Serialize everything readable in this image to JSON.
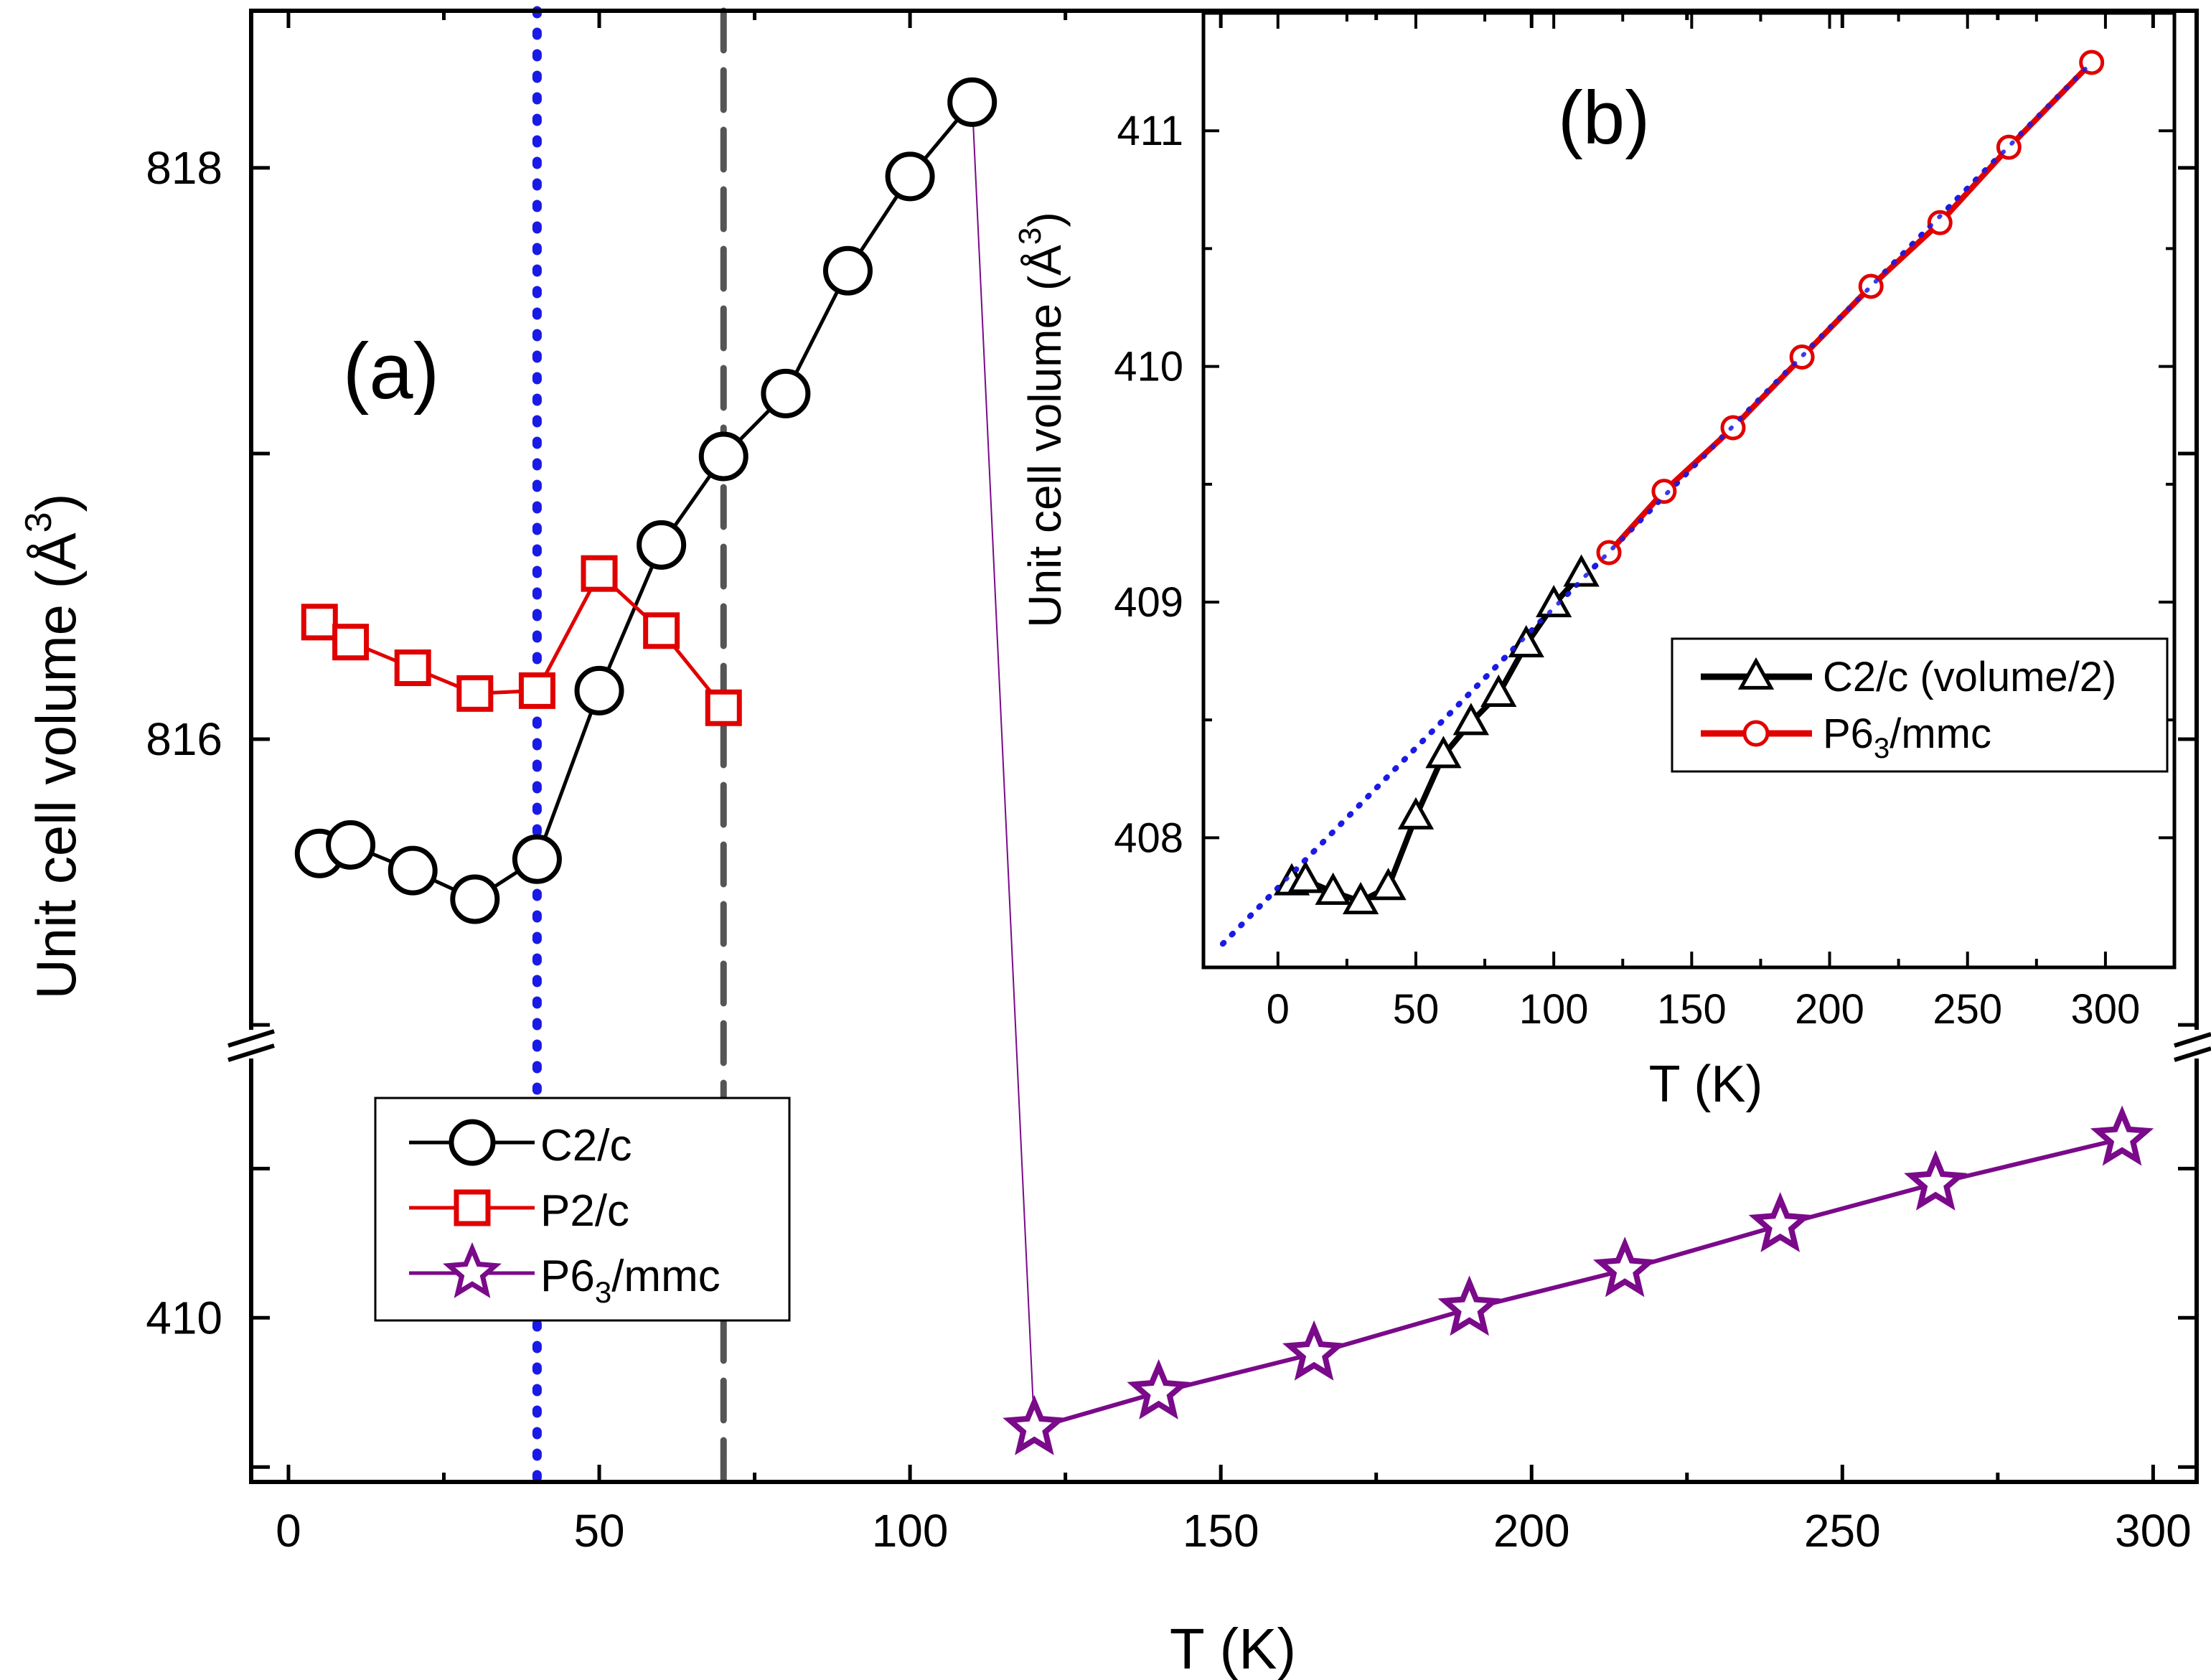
{
  "chart_data": [
    {
      "id": "a",
      "type": "scatter",
      "panel_label": "(a)",
      "xlabel": "T (K)",
      "ylabel": "Unit cell volume (Å",
      "ylabel_sup": "3",
      "ylabel_close": ")",
      "xlim": [
        -6,
        307
      ],
      "xticks": [
        0,
        50,
        100,
        150,
        200,
        250,
        300
      ],
      "ylim_upper": [
        814.95,
        818.55
      ],
      "yticks_upper": [
        816,
        818
      ],
      "ylim_lower": [
        409.45,
        410.9
      ],
      "yticks_lower": [
        410
      ],
      "axis_break": "y",
      "vlines": [
        {
          "x": 40,
          "style": "dotted",
          "color": "#1a1ae6"
        },
        {
          "x": 70,
          "style": "dashed",
          "color": "#555555"
        }
      ],
      "series": [
        {
          "name": "C2/c",
          "marker": "circle",
          "color": "#000000",
          "segment": "upper",
          "x": [
            5,
            10,
            20,
            30,
            40,
            50,
            60,
            70,
            80,
            90,
            100,
            110
          ],
          "y": [
            815.6,
            815.63,
            815.54,
            815.44,
            815.58,
            816.17,
            816.68,
            816.99,
            817.21,
            817.64,
            817.97,
            818.23
          ]
        },
        {
          "name": "P2/c",
          "marker": "square",
          "color": "#e00000",
          "segment": "upper",
          "x": [
            5,
            10,
            20,
            30,
            40,
            50,
            60,
            70
          ],
          "y": [
            816.41,
            816.34,
            816.25,
            816.16,
            816.17,
            816.58,
            816.38,
            816.11
          ]
        },
        {
          "name": "P6",
          "name_sub": "3",
          "name_tail": "/mmc",
          "marker": "star",
          "color": "#7a0a8a",
          "segment": "lower",
          "x": [
            120,
            140,
            165,
            190,
            215,
            240,
            265,
            295
          ],
          "y": [
            409.63,
            409.75,
            409.88,
            410.03,
            410.16,
            410.31,
            410.45,
            410.6
          ]
        }
      ],
      "legend": {
        "position": "lower-left"
      }
    },
    {
      "id": "b",
      "type": "line",
      "inset": true,
      "panel_label": "(b)",
      "xlabel": "T (K)",
      "ylabel": "Unit cell volume (Å",
      "ylabel_sup": "3",
      "ylabel_close": ")",
      "xlim": [
        -27,
        325
      ],
      "xticks": [
        0,
        50,
        100,
        150,
        200,
        250,
        300
      ],
      "ylim": [
        407.45,
        411.5
      ],
      "yticks": [
        408,
        409,
        410,
        411
      ],
      "fit_line": {
        "x": [
          -20,
          295
        ],
        "y": [
          407.55,
          411.29
        ],
        "style": "dotted",
        "color": "#1a1ae6"
      },
      "series": [
        {
          "name": "C2/c (volume/2)",
          "marker": "triangle",
          "color": "#000000",
          "x": [
            5,
            10,
            20,
            30,
            40,
            50,
            60,
            70,
            80,
            90,
            100,
            110
          ],
          "y": [
            407.81,
            407.82,
            407.77,
            407.73,
            407.79,
            408.09,
            408.35,
            408.49,
            408.61,
            408.82,
            408.99,
            409.12
          ]
        },
        {
          "name": "P6",
          "name_sub": "3",
          "name_tail": "/mmc",
          "marker": "circle",
          "color": "#e00000",
          "x": [
            120,
            140,
            165,
            190,
            215,
            240,
            265,
            295
          ],
          "y": [
            409.21,
            409.47,
            409.74,
            410.04,
            410.34,
            410.61,
            410.93,
            411.29
          ]
        }
      ],
      "legend": {
        "position": "lower-right"
      }
    }
  ]
}
